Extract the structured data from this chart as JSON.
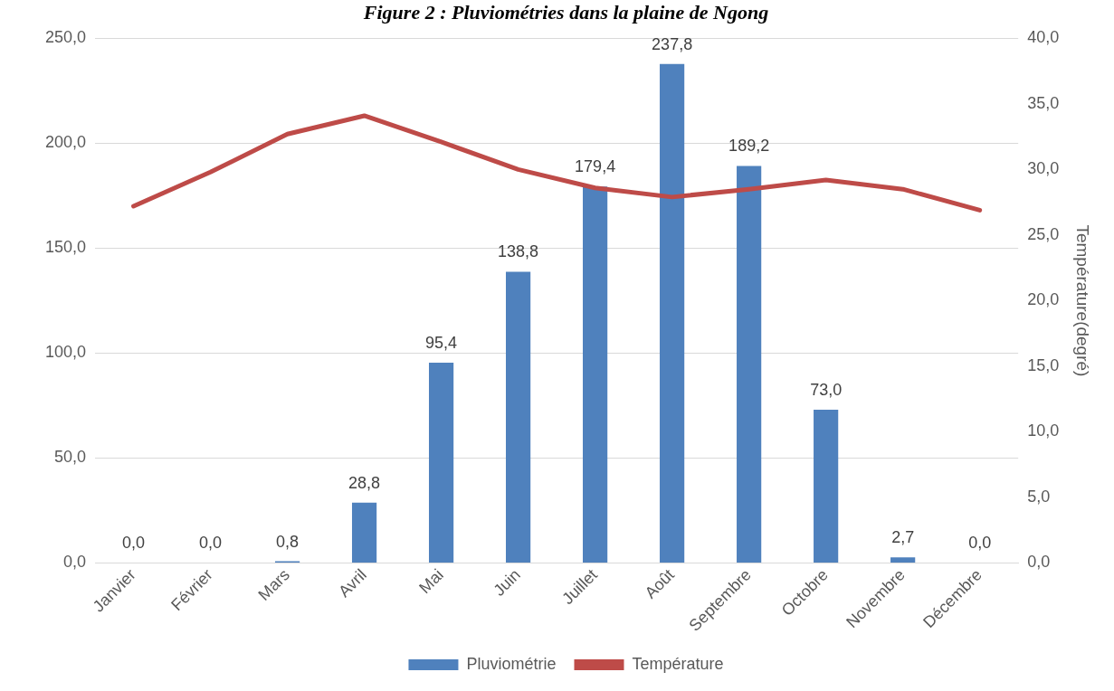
{
  "chart_data": {
    "type": "bar",
    "title": "Figure 2 : Pluviométries dans la plaine de Ngong",
    "categories": [
      "Janvier",
      "Février",
      "Mars",
      "Avril",
      "Mai",
      "Juin",
      "Juillet",
      "Août",
      "Septembre",
      "Octobre",
      "Novembre",
      "Décembre"
    ],
    "series": [
      {
        "name": "Pluviométrie",
        "color": "#4f81bd",
        "values": [
          0.0,
          0.0,
          0.8,
          28.8,
          95.4,
          138.8,
          179.4,
          237.8,
          189.2,
          73.0,
          2.7,
          0.0
        ],
        "value_labels": [
          "0,0",
          "0,0",
          "0,8",
          "28,8",
          "95,4",
          "138,8",
          "179,4",
          "237,8",
          "189,2",
          "73,0",
          "2,7",
          "0,0"
        ]
      },
      {
        "name": "Température",
        "type": "line",
        "axis": "y2",
        "color": "#be4b48",
        "values": [
          27.2,
          29.8,
          32.7,
          34.1,
          32.1,
          30.0,
          28.6,
          27.9,
          28.5,
          29.2,
          28.5,
          26.9
        ]
      }
    ],
    "y2label": "Température(degré)",
    "ylim": [
      0,
      250
    ],
    "yticks": [
      {
        "value": 0,
        "label": "0,0"
      },
      {
        "value": 50,
        "label": "50,0"
      },
      {
        "value": 100,
        "label": "100,0"
      },
      {
        "value": 150,
        "label": "150,0"
      },
      {
        "value": 200,
        "label": "200,0"
      },
      {
        "value": 250,
        "label": "250,0"
      }
    ],
    "y2lim": [
      0,
      40
    ],
    "y2ticks": [
      {
        "value": 0,
        "label": "0,0"
      },
      {
        "value": 5,
        "label": "5,0"
      },
      {
        "value": 10,
        "label": "10,0"
      },
      {
        "value": 15,
        "label": "15,0"
      },
      {
        "value": 20,
        "label": "20,0"
      },
      {
        "value": 25,
        "label": "25,0"
      },
      {
        "value": 30,
        "label": "30,0"
      },
      {
        "value": 35,
        "label": "35,0"
      },
      {
        "value": 40,
        "label": "40,0"
      }
    ],
    "grid": "y",
    "legend": "bottom",
    "marker": "none"
  }
}
